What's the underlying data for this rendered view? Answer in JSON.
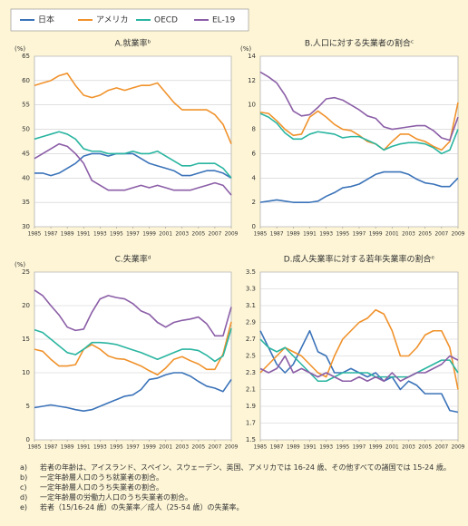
{
  "chart_data": [
    {
      "type": "line",
      "title": "A.就業率ᵇ",
      "y_label": "(%)",
      "x": [
        1985,
        1986,
        1987,
        1988,
        1989,
        1990,
        1991,
        1992,
        1993,
        1994,
        1995,
        1996,
        1997,
        1998,
        1999,
        2000,
        2001,
        2002,
        2003,
        2004,
        2005,
        2006,
        2007,
        2008,
        2009
      ],
      "xlim": [
        1985,
        2009
      ],
      "xticks": [
        1985,
        1987,
        1989,
        1991,
        1993,
        1995,
        1997,
        1999,
        2001,
        2003,
        2005,
        2007,
        2009
      ],
      "ylim": [
        30,
        65
      ],
      "yticks": [
        30,
        35,
        40,
        45,
        50,
        55,
        60,
        65
      ],
      "grid": true,
      "series": [
        {
          "name": "日本",
          "color": "#3b73b9",
          "values": [
            41,
            41,
            40.5,
            41,
            42,
            43,
            44.5,
            45,
            45,
            44.5,
            45,
            45,
            45,
            44,
            43,
            42.5,
            42,
            41.5,
            40.5,
            40.5,
            41,
            41.5,
            41.5,
            41,
            40
          ]
        },
        {
          "name": "アメリカ",
          "color": "#f0922b",
          "values": [
            59,
            59.5,
            60,
            61,
            61.5,
            59,
            57,
            56.5,
            57,
            58,
            58.5,
            58,
            58.5,
            59,
            59,
            59.5,
            57.5,
            55.5,
            54,
            54,
            54,
            54,
            53,
            51,
            47
          ]
        },
        {
          "name": "OECD",
          "color": "#2ab5a0",
          "values": [
            48,
            48.5,
            49,
            49.5,
            49,
            48,
            46,
            45.5,
            45.5,
            45,
            45,
            45,
            45.5,
            45,
            45,
            45.5,
            44.5,
            43.5,
            42.5,
            42.5,
            43,
            43,
            43,
            42,
            40
          ]
        },
        {
          "name": "EL-19",
          "color": "#8b5ea7",
          "values": [
            44,
            45,
            46,
            47,
            46.5,
            45,
            43,
            39.5,
            38.5,
            37.5,
            37.5,
            37.5,
            38,
            38.5,
            38,
            38.5,
            38,
            37.5,
            37.5,
            37.5,
            38,
            38.5,
            39,
            38.5,
            36.5
          ]
        }
      ]
    },
    {
      "type": "line",
      "title": "B.人口に対する失業者の割合ᶜ",
      "y_label": "(%)",
      "x": [
        1985,
        1986,
        1987,
        1988,
        1989,
        1990,
        1991,
        1992,
        1993,
        1994,
        1995,
        1996,
        1997,
        1998,
        1999,
        2000,
        2001,
        2002,
        2003,
        2004,
        2005,
        2006,
        2007,
        2008,
        2009
      ],
      "xlim": [
        1985,
        2009
      ],
      "xticks": [
        1985,
        1987,
        1989,
        1991,
        1993,
        1995,
        1997,
        1999,
        2001,
        2003,
        2005,
        2007,
        2009
      ],
      "ylim": [
        0,
        14
      ],
      "yticks": [
        0,
        2,
        4,
        6,
        8,
        10,
        12,
        14
      ],
      "grid": true,
      "series": [
        {
          "name": "日本",
          "color": "#3b73b9",
          "values": [
            2,
            2.1,
            2.2,
            2.1,
            2,
            2,
            2,
            2.1,
            2.5,
            2.8,
            3.2,
            3.3,
            3.5,
            3.9,
            4.3,
            4.5,
            4.5,
            4.5,
            4.3,
            3.9,
            3.6,
            3.5,
            3.3,
            3.3,
            4
          ]
        },
        {
          "name": "アメリカ",
          "color": "#f0922b",
          "values": [
            9.4,
            9.3,
            8.7,
            8,
            7.5,
            7.6,
            9,
            9.5,
            9,
            8.4,
            8,
            7.9,
            7.5,
            7,
            6.8,
            6.3,
            7,
            7.6,
            7.6,
            7.2,
            7,
            6.6,
            6.3,
            7,
            10.2
          ]
        },
        {
          "name": "OECD",
          "color": "#2ab5a0",
          "values": [
            9.3,
            9,
            8.5,
            7.7,
            7.2,
            7.2,
            7.6,
            7.8,
            7.7,
            7.6,
            7.3,
            7.4,
            7.4,
            7.1,
            6.8,
            6.3,
            6.6,
            6.8,
            6.9,
            6.9,
            6.8,
            6.5,
            6,
            6.3,
            8
          ]
        },
        {
          "name": "EL-19",
          "color": "#8b5ea7",
          "values": [
            12.7,
            12.3,
            11.8,
            10.8,
            9.5,
            9.1,
            9.2,
            9.8,
            10.5,
            10.6,
            10.4,
            10,
            9.6,
            9.1,
            8.9,
            8.2,
            8,
            8.1,
            8.2,
            8.3,
            8.3,
            7.9,
            7.3,
            7.1,
            9
          ]
        }
      ]
    },
    {
      "type": "line",
      "title": "C.失業率ᵈ",
      "y_label": "(%)",
      "x": [
        1985,
        1986,
        1987,
        1988,
        1989,
        1990,
        1991,
        1992,
        1993,
        1994,
        1995,
        1996,
        1997,
        1998,
        1999,
        2000,
        2001,
        2002,
        2003,
        2004,
        2005,
        2006,
        2007,
        2008,
        2009
      ],
      "xlim": [
        1985,
        2009
      ],
      "xticks": [
        1985,
        1987,
        1989,
        1991,
        1993,
        1995,
        1997,
        1999,
        2001,
        2003,
        2005,
        2007,
        2009
      ],
      "ylim": [
        0,
        25
      ],
      "yticks": [
        0,
        5,
        10,
        15,
        20,
        25
      ],
      "grid": true,
      "series": [
        {
          "name": "日本",
          "color": "#3b73b9",
          "values": [
            4.8,
            5,
            5.2,
            5,
            4.8,
            4.5,
            4.3,
            4.5,
            5,
            5.5,
            6,
            6.5,
            6.7,
            7.5,
            9,
            9.2,
            9.7,
            10,
            10,
            9.5,
            8.7,
            8,
            7.7,
            7.2,
            9
          ]
        },
        {
          "name": "アメリカ",
          "color": "#f0922b",
          "values": [
            13.5,
            13.2,
            12,
            11,
            11,
            11.2,
            13.5,
            14.2,
            13.5,
            12.5,
            12.1,
            12,
            11.5,
            11,
            10.3,
            9.7,
            10.7,
            12,
            12.4,
            11.8,
            11.3,
            10.5,
            10.5,
            12.8,
            17.6
          ]
        },
        {
          "name": "OECD",
          "color": "#2ab5a0",
          "values": [
            16.4,
            16,
            15,
            14,
            13,
            12.7,
            13.5,
            14.5,
            14.5,
            14.4,
            14.2,
            13.8,
            13.4,
            13,
            12.5,
            12,
            12.5,
            13,
            13.5,
            13.5,
            13.3,
            12.6,
            11.7,
            12.5,
            16.6
          ]
        },
        {
          "name": "EL-19",
          "color": "#8b5ea7",
          "values": [
            22.3,
            21.5,
            20,
            18.6,
            16.8,
            16.3,
            16.5,
            19,
            21,
            21.5,
            21.2,
            21,
            20.3,
            19.2,
            18.7,
            17.5,
            16.8,
            17.5,
            17.8,
            18,
            18.3,
            17.3,
            15.5,
            15.5,
            19.8
          ]
        }
      ]
    },
    {
      "type": "line",
      "title": "D.成人失業率に対する若年失業率の割合ᵉ",
      "x": [
        1985,
        1986,
        1987,
        1988,
        1989,
        1990,
        1991,
        1992,
        1993,
        1994,
        1995,
        1996,
        1997,
        1998,
        1999,
        2000,
        2001,
        2002,
        2003,
        2004,
        2005,
        2006,
        2007,
        2008,
        2009
      ],
      "xlim": [
        1985,
        2009
      ],
      "xticks": [
        1985,
        1987,
        1989,
        1991,
        1993,
        1995,
        1997,
        1999,
        2001,
        2003,
        2005,
        2007,
        2009
      ],
      "ylim": [
        1.5,
        3.5
      ],
      "yticks": [
        1.5,
        1.7,
        1.9,
        2.1,
        2.3,
        2.5,
        2.7,
        2.9,
        3.1,
        3.3,
        3.5
      ],
      "grid": true,
      "series": [
        {
          "name": "日本",
          "color": "#3b73b9",
          "values": [
            2.8,
            2.6,
            2.4,
            2.3,
            2.4,
            2.6,
            2.8,
            2.55,
            2.5,
            2.3,
            2.3,
            2.35,
            2.3,
            2.25,
            2.3,
            2.2,
            2.25,
            2.1,
            2.2,
            2.15,
            2.05,
            2.05,
            2.05,
            1.85,
            1.83
          ]
        },
        {
          "name": "アメリカ",
          "color": "#f0922b",
          "values": [
            2.3,
            2.4,
            2.5,
            2.6,
            2.55,
            2.5,
            2.4,
            2.3,
            2.25,
            2.5,
            2.7,
            2.8,
            2.9,
            2.95,
            3.05,
            3,
            2.8,
            2.5,
            2.5,
            2.6,
            2.75,
            2.8,
            2.8,
            2.6,
            2.1
          ]
        },
        {
          "name": "OECD",
          "color": "#2ab5a0",
          "values": [
            2.7,
            2.6,
            2.55,
            2.6,
            2.5,
            2.4,
            2.3,
            2.2,
            2.2,
            2.25,
            2.3,
            2.3,
            2.3,
            2.3,
            2.25,
            2.25,
            2.25,
            2.25,
            2.25,
            2.3,
            2.35,
            2.4,
            2.45,
            2.45,
            2.3
          ]
        },
        {
          "name": "EL-19",
          "color": "#8b5ea7",
          "values": [
            2.35,
            2.3,
            2.35,
            2.5,
            2.3,
            2.35,
            2.3,
            2.25,
            2.3,
            2.25,
            2.2,
            2.2,
            2.25,
            2.2,
            2.25,
            2.2,
            2.3,
            2.2,
            2.25,
            2.3,
            2.3,
            2.35,
            2.4,
            2.5,
            2.45
          ]
        }
      ]
    }
  ],
  "notes": [
    {
      "mark": "a)",
      "text": "若者の年齢は、アイスランド、スペイン、スウェーデン、英国、アメリカでは 16-24 歳、その他すべての諸国では 15-24 歳。"
    },
    {
      "mark": "b)",
      "text": "一定年齢層人口のうち就業者の割合。"
    },
    {
      "mark": "c)",
      "text": "一定年齢層人口のうち失業者の割合。"
    },
    {
      "mark": "d)",
      "text": "一定年齢層の労働力人口のうち失業者の割合。"
    },
    {
      "mark": "e)",
      "text": "若者（15/16-24 歳）の失業率／成人（25-54 歳）の失業率。"
    }
  ]
}
